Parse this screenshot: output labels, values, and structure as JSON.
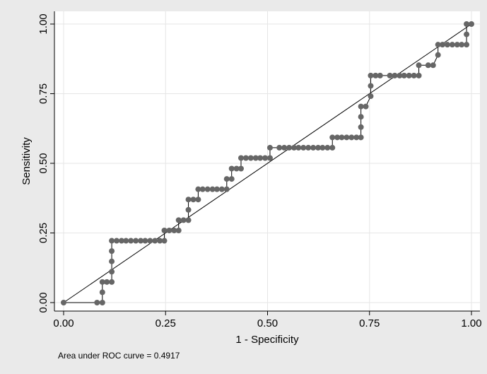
{
  "chart_data": {
    "type": "line",
    "xlabel": "1 - Specificity",
    "ylabel": "Sensitivity",
    "xlim": [
      0,
      1
    ],
    "ylim": [
      0,
      1
    ],
    "x_ticks": [
      "0.00",
      "0.25",
      "0.50",
      "0.75",
      "1.00"
    ],
    "y_ticks": [
      "0.00",
      "0.25",
      "0.50",
      "0.75",
      "1.00"
    ],
    "grid": true,
    "note": "Area under ROC curve = 0.4917",
    "reference_line": [
      [
        0,
        0
      ],
      [
        1,
        1
      ]
    ],
    "colors": {
      "curve": "#000000",
      "marker": "#666666",
      "grid": "#e6e6e6",
      "background": "#eaeaea",
      "plot": "#ffffff"
    },
    "series": [
      {
        "points": [
          [
            0.0,
            0.0
          ],
          [
            0.082,
            0.0
          ],
          [
            0.095,
            0.0
          ],
          [
            0.095,
            0.037
          ],
          [
            0.095,
            0.074
          ],
          [
            0.106,
            0.074
          ],
          [
            0.118,
            0.074
          ],
          [
            0.118,
            0.111
          ],
          [
            0.118,
            0.148
          ],
          [
            0.118,
            0.185
          ],
          [
            0.118,
            0.222
          ],
          [
            0.13,
            0.222
          ],
          [
            0.142,
            0.222
          ],
          [
            0.153,
            0.222
          ],
          [
            0.165,
            0.222
          ],
          [
            0.177,
            0.222
          ],
          [
            0.189,
            0.222
          ],
          [
            0.2,
            0.222
          ],
          [
            0.212,
            0.222
          ],
          [
            0.224,
            0.222
          ],
          [
            0.236,
            0.222
          ],
          [
            0.247,
            0.222
          ],
          [
            0.247,
            0.259
          ],
          [
            0.259,
            0.259
          ],
          [
            0.271,
            0.259
          ],
          [
            0.282,
            0.259
          ],
          [
            0.282,
            0.296
          ],
          [
            0.294,
            0.296
          ],
          [
            0.306,
            0.296
          ],
          [
            0.306,
            0.333
          ],
          [
            0.306,
            0.37
          ],
          [
            0.318,
            0.37
          ],
          [
            0.33,
            0.37
          ],
          [
            0.33,
            0.407
          ],
          [
            0.341,
            0.407
          ],
          [
            0.353,
            0.407
          ],
          [
            0.365,
            0.407
          ],
          [
            0.376,
            0.407
          ],
          [
            0.388,
            0.407
          ],
          [
            0.4,
            0.407
          ],
          [
            0.4,
            0.444
          ],
          [
            0.412,
            0.444
          ],
          [
            0.412,
            0.481
          ],
          [
            0.424,
            0.481
          ],
          [
            0.435,
            0.481
          ],
          [
            0.435,
            0.519
          ],
          [
            0.447,
            0.519
          ],
          [
            0.459,
            0.519
          ],
          [
            0.471,
            0.519
          ],
          [
            0.482,
            0.519
          ],
          [
            0.494,
            0.519
          ],
          [
            0.506,
            0.519
          ],
          [
            0.506,
            0.556
          ],
          [
            0.529,
            0.556
          ],
          [
            0.541,
            0.556
          ],
          [
            0.553,
            0.556
          ],
          [
            0.565,
            0.556
          ],
          [
            0.576,
            0.556
          ],
          [
            0.588,
            0.556
          ],
          [
            0.6,
            0.556
          ],
          [
            0.612,
            0.556
          ],
          [
            0.624,
            0.556
          ],
          [
            0.635,
            0.556
          ],
          [
            0.647,
            0.556
          ],
          [
            0.659,
            0.556
          ],
          [
            0.659,
            0.593
          ],
          [
            0.671,
            0.593
          ],
          [
            0.682,
            0.593
          ],
          [
            0.694,
            0.593
          ],
          [
            0.706,
            0.593
          ],
          [
            0.718,
            0.593
          ],
          [
            0.729,
            0.593
          ],
          [
            0.729,
            0.63
          ],
          [
            0.729,
            0.667
          ],
          [
            0.729,
            0.704
          ],
          [
            0.741,
            0.704
          ],
          [
            0.753,
            0.741
          ],
          [
            0.753,
            0.778
          ],
          [
            0.753,
            0.815
          ],
          [
            0.765,
            0.815
          ],
          [
            0.776,
            0.815
          ],
          [
            0.8,
            0.815
          ],
          [
            0.812,
            0.815
          ],
          [
            0.824,
            0.815
          ],
          [
            0.835,
            0.815
          ],
          [
            0.847,
            0.815
          ],
          [
            0.859,
            0.815
          ],
          [
            0.871,
            0.815
          ],
          [
            0.871,
            0.852
          ],
          [
            0.894,
            0.852
          ],
          [
            0.906,
            0.852
          ],
          [
            0.918,
            0.889
          ],
          [
            0.918,
            0.926
          ],
          [
            0.929,
            0.926
          ],
          [
            0.941,
            0.926
          ],
          [
            0.953,
            0.926
          ],
          [
            0.965,
            0.926
          ],
          [
            0.976,
            0.926
          ],
          [
            0.988,
            0.926
          ],
          [
            0.988,
            0.963
          ],
          [
            0.988,
            1.0
          ],
          [
            1.0,
            1.0
          ]
        ]
      }
    ]
  }
}
